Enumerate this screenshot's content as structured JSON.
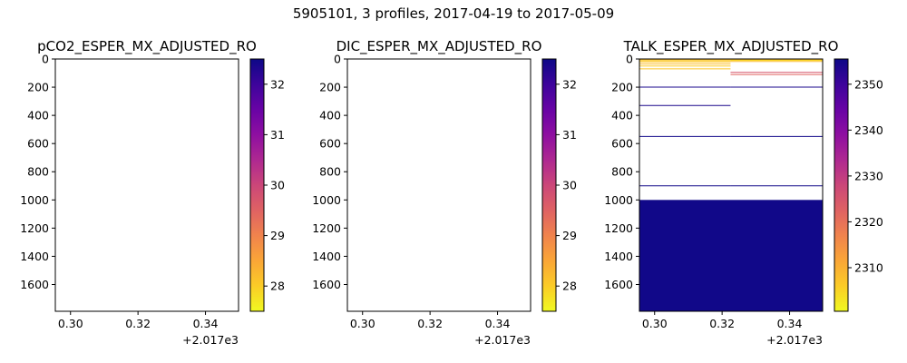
{
  "figure": {
    "suptitle": "5905101, 3 profiles, 2017-04-19 to 2017-05-09"
  },
  "chart_data": [
    {
      "type": "heatmap",
      "title": "pCO2_ESPER_MX_ADJUSTED_RO",
      "xlim": [
        2017.2955,
        2017.3498
      ],
      "ylim": [
        1790,
        0
      ],
      "x_ticks": [
        0.3,
        0.32,
        0.34
      ],
      "x_tick_labels": [
        "0.30",
        "0.32",
        "0.34"
      ],
      "x_offset_label": "+2.017e3",
      "y_ticks": [
        0,
        200,
        400,
        600,
        800,
        1000,
        1200,
        1400,
        1600
      ],
      "colormap": "plasma_r",
      "colorbar": {
        "range": [
          27.5,
          32.5
        ],
        "ticks": [
          28,
          29,
          30,
          31,
          32
        ]
      },
      "profiles": []
    },
    {
      "type": "heatmap",
      "title": "DIC_ESPER_MX_ADJUSTED_RO",
      "xlim": [
        2017.2955,
        2017.3498
      ],
      "ylim": [
        1790,
        0
      ],
      "x_ticks": [
        0.3,
        0.32,
        0.34
      ],
      "x_tick_labels": [
        "0.30",
        "0.32",
        "0.34"
      ],
      "x_offset_label": "+2.017e3",
      "y_ticks": [
        0,
        200,
        400,
        600,
        800,
        1000,
        1200,
        1400,
        1600
      ],
      "colormap": "plasma_r",
      "colorbar": {
        "range": [
          27.5,
          32.5
        ],
        "ticks": [
          28,
          29,
          30,
          31,
          32
        ]
      },
      "profiles": []
    },
    {
      "type": "heatmap",
      "title": "TALK_ESPER_MX_ADJUSTED_RO",
      "xlim": [
        2017.2955,
        2017.3498
      ],
      "ylim": [
        1790,
        0
      ],
      "x_ticks": [
        0.3,
        0.32,
        0.34
      ],
      "x_tick_labels": [
        "0.30",
        "0.32",
        "0.34"
      ],
      "x_offset_label": "+2.017e3",
      "y_ticks": [
        0,
        200,
        400,
        600,
        800,
        1000,
        1200,
        1400,
        1600
      ],
      "colormap": "plasma_r",
      "colorbar": {
        "range": [
          2300.5,
          2355.5
        ],
        "ticks": [
          2310,
          2320,
          2330,
          2340,
          2350
        ]
      },
      "profiles": [
        {
          "x_start": 2017.2955,
          "x_end": 2017.3225,
          "levels": [
            {
              "depth": 5,
              "value": 2308
            },
            {
              "depth": 12,
              "value": 2306
            },
            {
              "depth": 20,
              "value": 2307
            },
            {
              "depth": 35,
              "value": 2308
            },
            {
              "depth": 50,
              "value": 2306
            },
            {
              "depth": 70,
              "value": 2307
            },
            {
              "depth": 200,
              "value": 2354
            },
            {
              "depth": 330,
              "value": 2354
            },
            {
              "depth": 550,
              "value": 2355
            },
            {
              "depth": 900,
              "value": 2355
            }
          ]
        },
        {
          "x_start": 2017.3225,
          "x_end": 2017.3498,
          "levels": [
            {
              "depth": 3,
              "value": 2307
            },
            {
              "depth": 10,
              "value": 2305
            },
            {
              "depth": 18,
              "value": 2308
            },
            {
              "depth": 95,
              "value": 2325
            },
            {
              "depth": 110,
              "value": 2322
            },
            {
              "depth": 200,
              "value": 2354
            },
            {
              "depth": 550,
              "value": 2355
            },
            {
              "depth": 900,
              "value": 2355
            }
          ]
        }
      ],
      "fill_below": {
        "depth_from": 1000,
        "depth_to": 1790,
        "value": 2355
      }
    }
  ]
}
